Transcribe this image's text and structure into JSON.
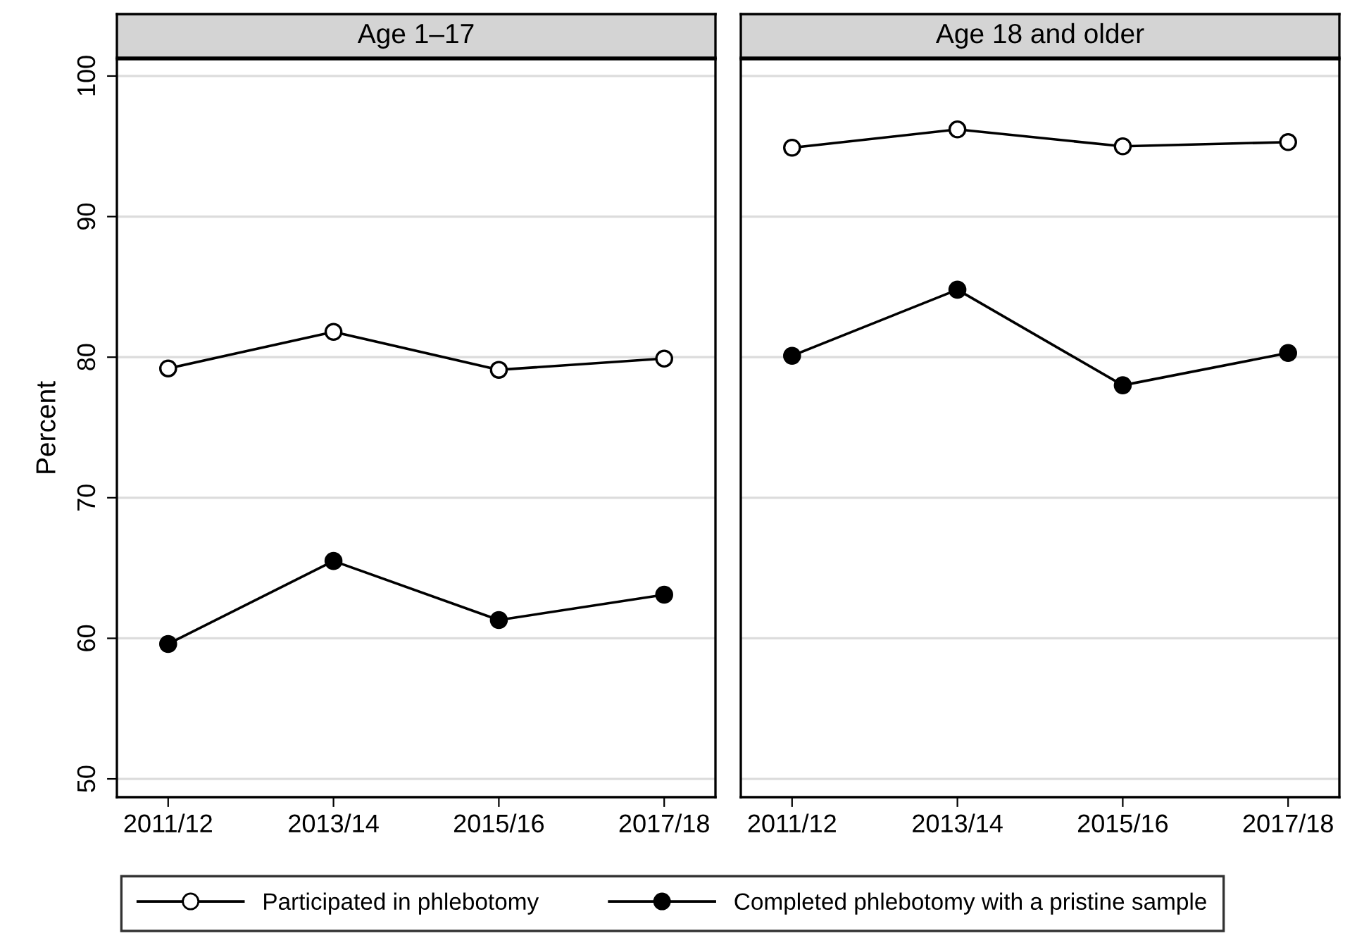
{
  "chart_data": [
    {
      "type": "line",
      "title": "Age 1–17",
      "ylabel": "Percent",
      "categories": [
        "2011/12",
        "2013/14",
        "2015/16",
        "2017/18"
      ],
      "series": [
        {
          "name": "Participated in phlebotomy",
          "color": "#ffffff",
          "values": [
            79.2,
            81.8,
            79.1,
            79.9
          ]
        },
        {
          "name": "Completed phlebotomy with a pristine sample",
          "color": "#000000",
          "values": [
            59.6,
            65.5,
            61.3,
            63.1
          ]
        }
      ],
      "ylim": [
        48.7,
        101.2
      ],
      "yticks": [
        50,
        60,
        70,
        80,
        90,
        100
      ],
      "grid": "y",
      "marker": "circle",
      "line_style": "solid",
      "legend": "bottom"
    },
    {
      "type": "line",
      "title": "Age 18 and older",
      "categories": [
        "2011/12",
        "2013/14",
        "2015/16",
        "2017/18"
      ],
      "series": [
        {
          "name": "Participated in phlebotomy",
          "color": "#ffffff",
          "values": [
            94.9,
            96.2,
            95.0,
            95.3
          ]
        },
        {
          "name": "Completed phlebotomy with a pristine sample",
          "color": "#000000",
          "values": [
            80.1,
            84.8,
            78.0,
            80.3
          ]
        }
      ],
      "ylim": [
        48.7,
        101.2
      ],
      "yticks": [
        50,
        60,
        70,
        80,
        90,
        100
      ],
      "grid": "y",
      "marker": "circle",
      "line_style": "solid",
      "legend": "bottom",
      "tick_labels": "x"
    }
  ]
}
